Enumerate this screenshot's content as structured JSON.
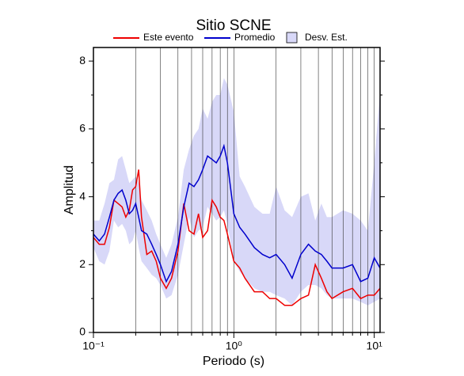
{
  "chart_data": {
    "type": "line",
    "title": "Sitio SCNE",
    "xlabel": "Periodo (s)",
    "ylabel": "Amplitud",
    "xscale": "log",
    "grid": true,
    "xlim": [
      0.1,
      11
    ],
    "ylim": [
      0,
      8.4
    ],
    "xticks": [
      {
        "value": 0.1,
        "label": "10⁻¹"
      },
      {
        "value": 1,
        "label": "10⁰"
      },
      {
        "value": 10,
        "label": "10¹"
      }
    ],
    "xminor": [
      0.2,
      0.3,
      0.4,
      0.5,
      0.6,
      0.7,
      0.8,
      0.9,
      2,
      3,
      4,
      5,
      6,
      7,
      8,
      9
    ],
    "yticks": [
      0,
      2,
      4,
      6,
      8
    ],
    "yminor": [
      1,
      3,
      5,
      7
    ],
    "x": [
      0.1,
      0.11,
      0.12,
      0.13,
      0.14,
      0.15,
      0.16,
      0.17,
      0.18,
      0.19,
      0.2,
      0.21,
      0.22,
      0.24,
      0.26,
      0.28,
      0.3,
      0.33,
      0.36,
      0.4,
      0.44,
      0.48,
      0.52,
      0.56,
      0.6,
      0.65,
      0.7,
      0.75,
      0.8,
      0.85,
      0.9,
      1.0,
      1.1,
      1.2,
      1.4,
      1.6,
      1.8,
      2.0,
      2.3,
      2.6,
      3.0,
      3.4,
      3.8,
      4.2,
      4.6,
      5.0,
      6,
      7,
      8,
      9,
      10,
      11
    ],
    "band": {
      "name": "Desv. Est.",
      "color": "#d8d8f8",
      "upper": [
        3.3,
        3.3,
        3.8,
        4.4,
        4.5,
        5.1,
        5.2,
        4.8,
        4.4,
        4.5,
        4.6,
        4.4,
        3.9,
        3.6,
        3.3,
        2.9,
        2.6,
        2.2,
        2.6,
        3.4,
        4.8,
        5.4,
        5.8,
        6.0,
        6.6,
        6.3,
        6.8,
        7.0,
        7.0,
        7.5,
        7.3,
        6.5,
        4.6,
        4.3,
        3.7,
        3.5,
        3.5,
        4.3,
        3.6,
        3.4,
        4.0,
        4.1,
        3.3,
        3.8,
        3.4,
        3.4,
        3.6,
        3.5,
        3.3,
        3.0,
        5.0,
        7.1
      ],
      "lower": [
        2.5,
        2.1,
        2.0,
        2.4,
        3.3,
        3.1,
        3.2,
        3.0,
        2.6,
        2.7,
        3.0,
        2.5,
        2.1,
        1.9,
        1.7,
        1.6,
        1.4,
        1.0,
        1.1,
        1.7,
        2.6,
        3.4,
        2.8,
        3.0,
        3.1,
        3.7,
        3.5,
        3.3,
        3.4,
        3.6,
        3.2,
        2.1,
        1.8,
        1.6,
        1.3,
        1.2,
        1.2,
        1.1,
        1.0,
        0.8,
        1.2,
        1.4,
        1.4,
        1.3,
        1.1,
        1.0,
        1.0,
        1.0,
        0.9,
        0.8,
        0.9,
        1.0
      ]
    },
    "series": [
      {
        "name": "Este evento",
        "color": "#ee0000",
        "values": [
          2.8,
          2.6,
          2.6,
          3.1,
          3.9,
          3.8,
          3.7,
          3.4,
          3.6,
          4.2,
          4.3,
          4.8,
          3.4,
          2.3,
          2.4,
          2.1,
          1.6,
          1.3,
          1.6,
          2.4,
          3.8,
          3.0,
          2.9,
          3.5,
          2.8,
          3.0,
          3.9,
          3.7,
          3.4,
          3.3,
          2.9,
          2.1,
          1.9,
          1.6,
          1.2,
          1.2,
          1.0,
          1.0,
          0.8,
          0.8,
          1.0,
          1.1,
          2.0,
          1.6,
          1.2,
          1.0,
          1.2,
          1.3,
          1.0,
          1.1,
          1.1,
          1.3
        ]
      },
      {
        "name": "Promedio",
        "color": "#0000cc",
        "values": [
          2.9,
          2.7,
          2.9,
          3.4,
          3.9,
          4.1,
          4.2,
          3.9,
          3.5,
          3.6,
          3.8,
          3.4,
          3.0,
          2.9,
          2.6,
          2.3,
          2.0,
          1.5,
          1.8,
          2.6,
          3.7,
          4.4,
          4.3,
          4.5,
          4.8,
          5.2,
          5.1,
          5.0,
          5.2,
          5.5,
          5.0,
          3.5,
          3.1,
          2.9,
          2.5,
          2.3,
          2.2,
          2.3,
          2.0,
          1.6,
          2.3,
          2.6,
          2.4,
          2.3,
          2.1,
          1.9,
          1.9,
          2.0,
          1.5,
          1.6,
          2.2,
          1.9
        ]
      }
    ]
  }
}
